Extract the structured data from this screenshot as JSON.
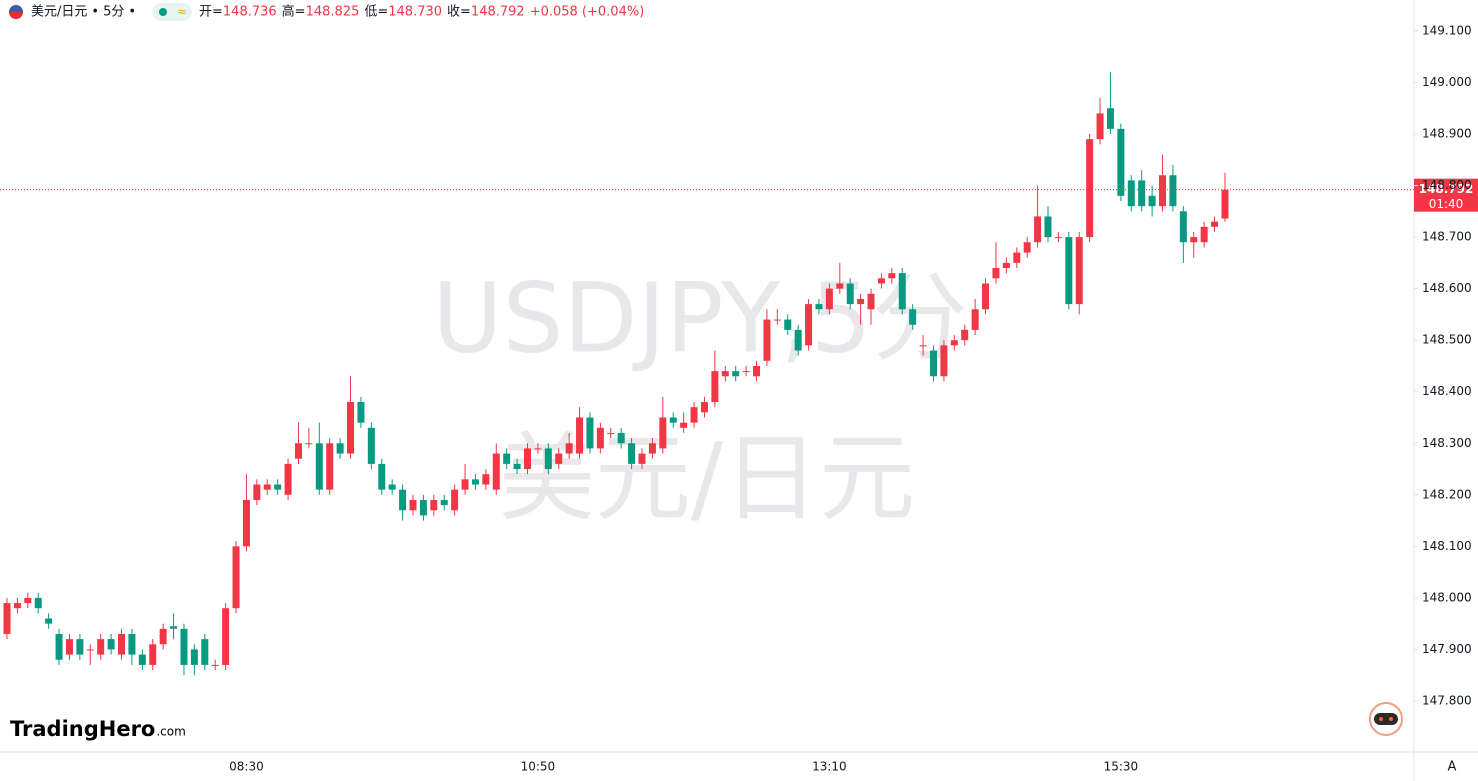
{
  "chart_data": {
    "type": "candlestick",
    "title": "美元/日元",
    "interval": "5分",
    "ohlc_labels": [
      {
        "label": "开=",
        "value": "148.736"
      },
      {
        "label": "高=",
        "value": "148.825"
      },
      {
        "label": "低=",
        "value": "148.730"
      },
      {
        "label": "收=",
        "value": "148.792"
      }
    ],
    "change": "+0.058 (+0.04%)",
    "watermark": [
      "USDJPY,5分",
      "美元/日元"
    ],
    "last_price_label": "148.792",
    "countdown": "01:40",
    "brand": "TradingHero",
    "brand_suffix": ".com",
    "scale_mode": "A",
    "up_color": "#f23645",
    "down_color": "#089981",
    "grid": false,
    "ylim": [
      147.701,
      149.16
    ],
    "yticks": [
      {
        "value": 147.8,
        "label": "147.800"
      },
      {
        "value": 147.9,
        "label": "147.900"
      },
      {
        "value": 148.0,
        "label": "148.000"
      },
      {
        "value": 148.1,
        "label": "148.100"
      },
      {
        "value": 148.2,
        "label": "148.200"
      },
      {
        "value": 148.3,
        "label": "148.300"
      },
      {
        "value": 148.4,
        "label": "148.400"
      },
      {
        "value": 148.5,
        "label": "148.500"
      },
      {
        "value": 148.6,
        "label": "148.600"
      },
      {
        "value": 148.7,
        "label": "148.700"
      },
      {
        "value": 148.8,
        "label": "148.800"
      },
      {
        "value": 148.9,
        "label": "148.900"
      },
      {
        "value": 149.0,
        "label": "149.000"
      },
      {
        "value": 149.1,
        "label": "149.100"
      }
    ],
    "categories": [
      null,
      null,
      null,
      null,
      null,
      null,
      null,
      null,
      null,
      null,
      null,
      null,
      null,
      null,
      null,
      null,
      null,
      null,
      null,
      null,
      null,
      null,
      null,
      "08:30",
      null,
      null,
      null,
      null,
      null,
      null,
      null,
      null,
      null,
      null,
      null,
      null,
      null,
      null,
      null,
      null,
      null,
      null,
      null,
      null,
      null,
      null,
      null,
      null,
      null,
      null,
      null,
      "10:50",
      null,
      null,
      null,
      null,
      null,
      null,
      null,
      null,
      null,
      null,
      null,
      null,
      null,
      null,
      null,
      null,
      null,
      null,
      null,
      null,
      null,
      null,
      null,
      null,
      null,
      null,
      null,
      "13:10",
      null,
      null,
      null,
      null,
      null,
      null,
      null,
      null,
      null,
      null,
      null,
      null,
      null,
      null,
      null,
      null,
      null,
      null,
      null,
      null,
      null,
      null,
      null,
      null,
      null,
      null,
      null,
      "15:30",
      null,
      null,
      null,
      null,
      null,
      null,
      null,
      null,
      null,
      null
    ],
    "open": [
      147.93,
      147.98,
      147.99,
      148.0,
      147.96,
      147.93,
      147.89,
      147.92,
      147.9,
      147.89,
      147.92,
      147.89,
      147.93,
      147.89,
      147.87,
      147.91,
      147.945,
      147.94,
      147.9,
      147.92,
      147.87,
      147.87,
      147.98,
      148.1,
      148.19,
      148.21,
      148.22,
      148.2,
      148.27,
      148.3,
      148.3,
      148.21,
      148.3,
      148.28,
      148.38,
      148.33,
      148.26,
      148.22,
      148.21,
      148.17,
      148.19,
      148.17,
      148.19,
      148.17,
      148.21,
      148.23,
      148.22,
      148.21,
      148.28,
      148.26,
      148.25,
      148.29,
      148.29,
      148.26,
      148.28,
      148.28,
      148.35,
      148.29,
      148.32,
      148.32,
      148.3,
      148.26,
      148.28,
      148.29,
      148.35,
      148.33,
      148.34,
      148.36,
      148.38,
      148.43,
      148.44,
      148.44,
      148.43,
      148.46,
      148.54,
      148.54,
      148.52,
      148.49,
      148.57,
      148.56,
      148.6,
      148.61,
      148.57,
      148.56,
      148.61,
      148.62,
      148.63,
      148.56,
      148.49,
      148.48,
      148.43,
      148.49,
      148.5,
      148.52,
      148.56,
      148.62,
      148.64,
      148.65,
      148.67,
      148.69,
      148.74,
      148.7,
      148.7,
      148.57,
      148.7,
      148.89,
      148.95,
      148.91,
      148.81,
      148.81,
      148.78,
      148.76,
      148.82,
      148.75,
      148.69,
      148.69,
      148.72,
      148.736
    ],
    "high": [
      148.0,
      148.0,
      148.01,
      148.01,
      147.97,
      147.94,
      147.93,
      147.93,
      147.91,
      147.93,
      147.93,
      147.94,
      147.94,
      147.9,
      147.92,
      147.95,
      147.97,
      147.95,
      147.91,
      147.93,
      147.88,
      147.99,
      148.11,
      148.24,
      148.23,
      148.23,
      148.23,
      148.27,
      148.34,
      148.33,
      148.34,
      148.31,
      148.31,
      148.43,
      148.39,
      148.34,
      148.27,
      148.23,
      148.22,
      148.2,
      148.2,
      148.2,
      148.2,
      148.22,
      148.26,
      148.24,
      148.25,
      148.3,
      148.29,
      148.27,
      148.3,
      148.3,
      148.3,
      148.29,
      148.32,
      148.37,
      148.36,
      148.34,
      148.33,
      148.33,
      148.31,
      148.29,
      148.31,
      148.39,
      148.36,
      148.36,
      148.38,
      148.39,
      148.48,
      148.45,
      148.45,
      148.45,
      148.46,
      148.56,
      148.56,
      148.55,
      148.53,
      148.58,
      148.58,
      148.61,
      148.65,
      148.62,
      148.59,
      148.6,
      148.63,
      148.64,
      148.64,
      148.57,
      148.51,
      148.49,
      148.5,
      148.51,
      148.53,
      148.58,
      148.62,
      148.69,
      148.66,
      148.68,
      148.7,
      148.8,
      148.76,
      148.71,
      148.71,
      148.71,
      148.9,
      148.97,
      149.02,
      148.92,
      148.82,
      148.83,
      148.8,
      148.86,
      148.84,
      148.76,
      148.71,
      148.73,
      148.74,
      148.825
    ],
    "low": [
      147.92,
      147.97,
      147.98,
      147.97,
      147.94,
      147.87,
      147.88,
      147.88,
      147.87,
      147.88,
      147.89,
      147.88,
      147.87,
      147.86,
      147.86,
      147.9,
      147.92,
      147.85,
      147.85,
      147.86,
      147.86,
      147.86,
      147.97,
      148.09,
      148.18,
      148.2,
      148.2,
      148.19,
      148.26,
      148.29,
      148.2,
      148.2,
      148.27,
      148.27,
      148.33,
      148.25,
      148.2,
      148.2,
      148.15,
      148.16,
      148.15,
      148.16,
      148.17,
      148.16,
      148.2,
      148.21,
      148.21,
      148.2,
      148.25,
      148.24,
      148.24,
      148.28,
      148.24,
      148.25,
      148.27,
      148.27,
      148.28,
      148.28,
      148.31,
      148.29,
      148.25,
      148.25,
      148.27,
      148.28,
      148.33,
      148.32,
      148.33,
      148.35,
      148.37,
      148.42,
      148.42,
      148.43,
      148.42,
      148.45,
      148.53,
      148.51,
      148.47,
      148.48,
      148.55,
      148.55,
      148.59,
      148.56,
      148.53,
      148.53,
      148.6,
      148.61,
      148.55,
      148.52,
      148.47,
      148.42,
      148.42,
      148.48,
      148.49,
      148.51,
      148.55,
      148.61,
      148.63,
      148.64,
      148.66,
      148.68,
      148.69,
      148.69,
      148.56,
      148.55,
      148.69,
      148.88,
      148.9,
      148.77,
      148.75,
      148.75,
      148.74,
      148.75,
      148.75,
      148.65,
      148.66,
      148.68,
      148.71,
      148.73
    ],
    "close": [
      147.99,
      147.99,
      148.0,
      147.98,
      147.95,
      147.88,
      147.92,
      147.89,
      147.9,
      147.92,
      147.9,
      147.93,
      147.89,
      147.87,
      147.91,
      147.94,
      147.94,
      147.87,
      147.87,
      147.87,
      147.87,
      147.98,
      148.1,
      148.19,
      148.22,
      148.22,
      148.21,
      148.26,
      148.3,
      148.3,
      148.21,
      148.3,
      148.28,
      148.38,
      148.34,
      148.26,
      148.21,
      148.21,
      148.17,
      148.19,
      148.16,
      148.19,
      148.18,
      148.21,
      148.23,
      148.22,
      148.24,
      148.28,
      148.26,
      148.25,
      148.29,
      148.29,
      148.25,
      148.28,
      148.3,
      148.35,
      148.29,
      148.33,
      148.32,
      148.3,
      148.26,
      148.28,
      148.3,
      148.35,
      148.34,
      148.34,
      148.37,
      148.38,
      148.44,
      148.44,
      148.43,
      148.44,
      148.45,
      148.54,
      148.54,
      148.52,
      148.48,
      148.57,
      148.56,
      148.6,
      148.61,
      148.57,
      148.58,
      148.59,
      148.62,
      148.63,
      148.56,
      148.53,
      148.49,
      148.43,
      148.49,
      148.5,
      148.52,
      148.56,
      148.61,
      148.64,
      148.65,
      148.67,
      148.69,
      148.74,
      148.7,
      148.7,
      148.57,
      148.7,
      148.89,
      148.94,
      148.91,
      148.78,
      148.76,
      148.76,
      148.76,
      148.82,
      148.76,
      148.69,
      148.7,
      148.72,
      148.73,
      148.792
    ]
  }
}
